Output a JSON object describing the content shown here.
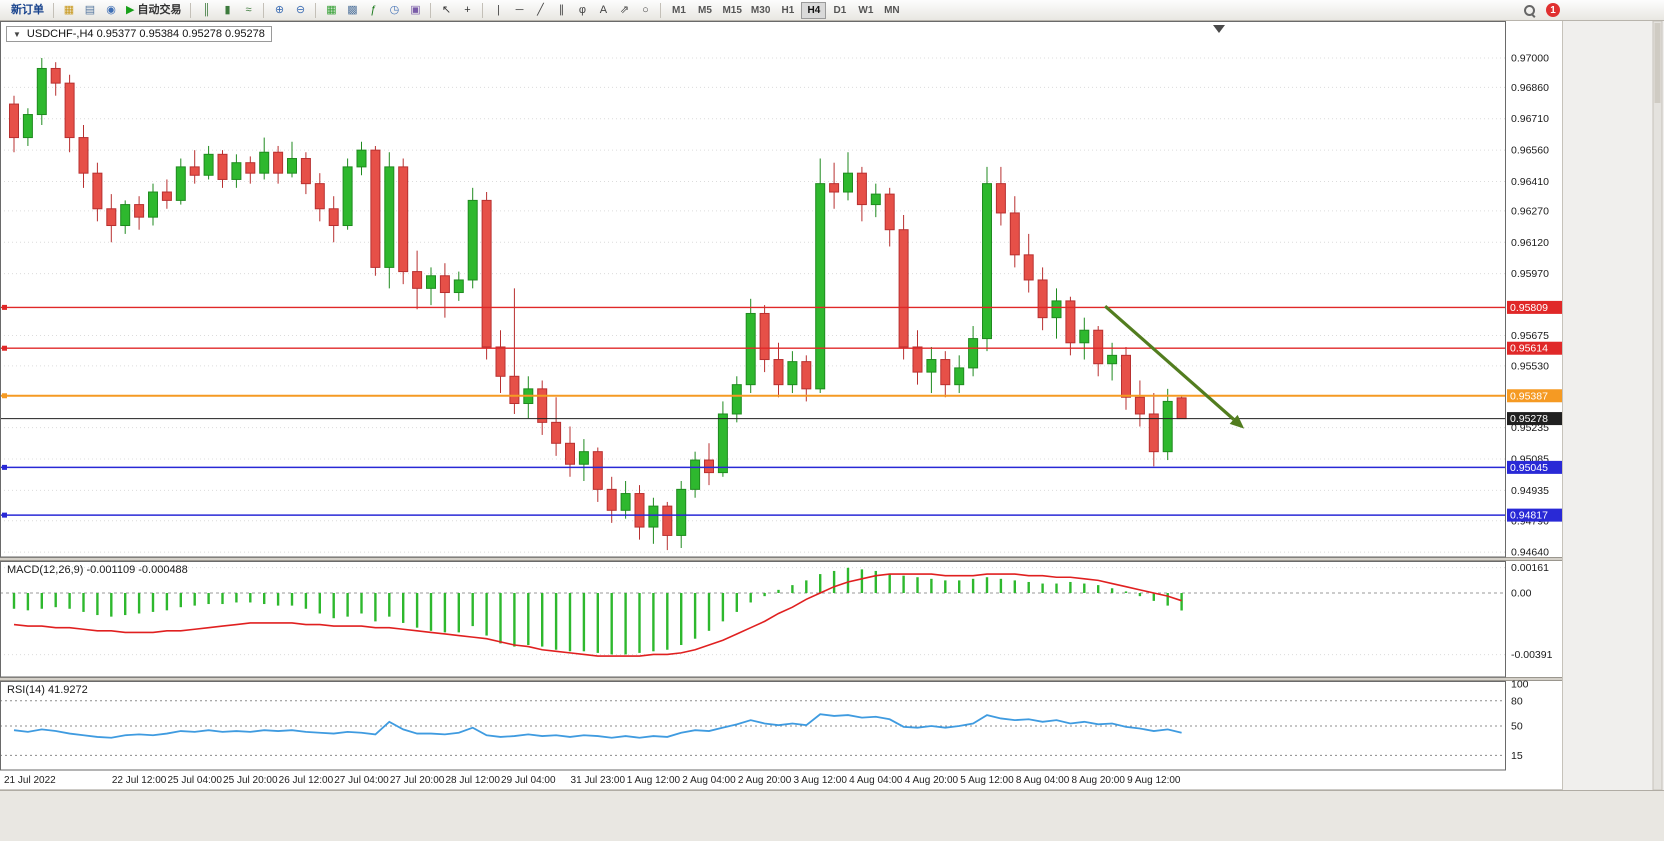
{
  "toolbar": {
    "notification_count": "1",
    "timeframes": [
      "M1",
      "M5",
      "M15",
      "M30",
      "H1",
      "H4",
      "D1",
      "W1",
      "MN"
    ],
    "active_timeframe": "H4",
    "items": [
      {
        "name": "new-order-button",
        "label": "新订单",
        "label_color": "#16418c"
      },
      {
        "sep": true
      },
      {
        "name": "charts-icon",
        "glyph": "▦",
        "color": "#c79618"
      },
      {
        "name": "data-window-icon",
        "glyph": "▤",
        "color": "#54769e"
      },
      {
        "name": "navigator-icon",
        "glyph": "◉",
        "color": "#3f6fb5"
      },
      {
        "name": "autotrading-button",
        "label": "自动交易",
        "label_color": "#333333",
        "glyph": "▶",
        "color": "#18a018"
      },
      {
        "sep": true
      },
      {
        "name": "bar-chart-icon",
        "glyph": "║",
        "color": "#3c7a3c"
      },
      {
        "name": "candlestick-chart-icon",
        "glyph": "▮",
        "color": "#3c7a3c"
      },
      {
        "name": "line-chart-icon",
        "glyph": "≈",
        "color": "#3c7a3c"
      },
      {
        "sep": true
      },
      {
        "name": "zoom-in-icon",
        "glyph": "⊕",
        "color": "#3f6fb5"
      },
      {
        "name": "zoom-out-icon",
        "glyph": "⊖",
        "color": "#3f6fb5"
      },
      {
        "sep": true
      },
      {
        "name": "tile-windows-icon",
        "glyph": "▦",
        "color": "#2f9e2f"
      },
      {
        "name": "cascade-windows-icon",
        "glyph": "▩",
        "color": "#54769e"
      },
      {
        "name": "indicators-icon",
        "glyph": "ƒ",
        "color": "#1d7a1d"
      },
      {
        "name": "period-icon",
        "glyph": "◷",
        "color": "#3f6fb5"
      },
      {
        "name": "templates-icon",
        "glyph": "▣",
        "color": "#7a5ca8"
      },
      {
        "sep": true
      },
      {
        "name": "cursor-icon",
        "glyph": "↖",
        "color": "#333333"
      },
      {
        "name": "crosshair-icon",
        "glyph": "+",
        "color": "#333333"
      },
      {
        "sep": true
      },
      {
        "name": "vertical-line-icon",
        "glyph": "|",
        "color": "#444444"
      },
      {
        "name": "horizontal-line-icon",
        "glyph": "─",
        "color": "#444444"
      },
      {
        "name": "trendline-icon",
        "glyph": "╱",
        "color": "#444444"
      },
      {
        "name": "channel-icon",
        "glyph": "∥",
        "color": "#444444"
      },
      {
        "name": "fibonacci-icon",
        "glyph": "φ",
        "color": "#444444"
      },
      {
        "name": "text-icon",
        "glyph": "A",
        "color": "#444444"
      },
      {
        "name": "arrows-icon",
        "glyph": "⇗",
        "color": "#444444"
      },
      {
        "name": "shapes-icon",
        "glyph": "○",
        "color": "#444444"
      },
      {
        "sep": true
      }
    ]
  },
  "chart": {
    "expand_icon": "▼",
    "quote_line": "USDCHF-,H4  0.95377 0.95384 0.95278 0.95278",
    "macd_label": "MACD(12,26,9) -0.001109 -0.000488",
    "rsi_label": "RSI(14) 41.9272"
  },
  "chart_data": [
    {
      "type": "candlestick",
      "symbol": "USDCHF-",
      "timeframe": "H4",
      "price_unit": "pips_1e-4",
      "last_quote": {
        "open": 0.95377,
        "high": 0.95384,
        "low": 0.95278,
        "close": 0.95278
      },
      "y_axis_ticks": [
        "0.97000",
        "0.96860",
        "0.96710",
        "0.96560",
        "0.96410",
        "0.96270",
        "0.96120",
        "0.95970",
        "0.95675",
        "0.95530",
        "0.95235",
        "0.95085",
        "0.94935",
        "0.94790",
        "0.94640"
      ],
      "levels": [
        {
          "price": 0.95809,
          "label": "0.95809",
          "color": "#e02828",
          "type": "resistance"
        },
        {
          "price": 0.95614,
          "label": "0.95614",
          "color": "#e02828",
          "type": "resistance"
        },
        {
          "price": 0.95387,
          "label": "0.95387",
          "color": "#f59a23",
          "type": "pivot"
        },
        {
          "price": 0.95278,
          "label": "0.95278",
          "color": "#202020",
          "type": "bid"
        },
        {
          "price": 0.95045,
          "label": "0.95045",
          "color": "#2929d6",
          "type": "support"
        },
        {
          "price": 0.94817,
          "label": "0.94817",
          "color": "#2929d6",
          "type": "support"
        }
      ],
      "annotations": [
        {
          "type": "trend-arrow",
          "color": "#527d1f",
          "from": {
            "bar": 78.5,
            "price": 0.95815
          },
          "to": {
            "bar": 88.5,
            "price": 0.9523
          }
        }
      ],
      "x_axis_labels": [
        {
          "label": "21 Jul 2022",
          "bar": 0
        },
        {
          "label": "22 Jul 12:00",
          "bar": 9
        },
        {
          "label": "25 Jul 04:00",
          "bar": 13
        },
        {
          "label": "25 Jul 20:00",
          "bar": 17
        },
        {
          "label": "26 Jul 12:00",
          "bar": 21
        },
        {
          "label": "27 Jul 04:00",
          "bar": 25
        },
        {
          "label": "27 Jul 20:00",
          "bar": 29
        },
        {
          "label": "28 Jul 12:00",
          "bar": 33
        },
        {
          "label": "29 Jul 04:00",
          "bar": 37
        },
        {
          "label": "31 Jul 23:00",
          "bar": 42
        },
        {
          "label": "1 Aug 12:00",
          "bar": 46
        },
        {
          "label": "2 Aug 04:00",
          "bar": 50
        },
        {
          "label": "2 Aug 20:00",
          "bar": 54
        },
        {
          "label": "3 Aug 12:00",
          "bar": 58
        },
        {
          "label": "4 Aug 04:00",
          "bar": 62
        },
        {
          "label": "4 Aug 20:00",
          "bar": 66
        },
        {
          "label": "5 Aug 12:00",
          "bar": 70
        },
        {
          "label": "8 Aug 04:00",
          "bar": 74
        },
        {
          "label": "8 Aug 20:00",
          "bar": 78
        },
        {
          "label": "9 Aug 12:00",
          "bar": 82
        }
      ],
      "candles_ohlc": [
        [
          9678,
          9682,
          9655,
          9662
        ],
        [
          9662,
          9676,
          9658,
          9673
        ],
        [
          9673,
          9700,
          9668,
          9695
        ],
        [
          9695,
          9698,
          9682,
          9688
        ],
        [
          9688,
          9692,
          9655,
          9662
        ],
        [
          9662,
          9668,
          9638,
          9645
        ],
        [
          9645,
          9650,
          9622,
          9628
        ],
        [
          9628,
          9635,
          9612,
          9620
        ],
        [
          9620,
          9632,
          9616,
          9630
        ],
        [
          9630,
          9634,
          9618,
          9624
        ],
        [
          9624,
          9640,
          9620,
          9636
        ],
        [
          9636,
          9642,
          9628,
          9632
        ],
        [
          9632,
          9652,
          9630,
          9648
        ],
        [
          9648,
          9656,
          9640,
          9644
        ],
        [
          9644,
          9658,
          9642,
          9654
        ],
        [
          9654,
          9656,
          9638,
          9642
        ],
        [
          9642,
          9654,
          9638,
          9650
        ],
        [
          9650,
          9653,
          9640,
          9645
        ],
        [
          9645,
          9662,
          9642,
          9655
        ],
        [
          9655,
          9658,
          9640,
          9645
        ],
        [
          9645,
          9660,
          9643,
          9652
        ],
        [
          9652,
          9655,
          9635,
          9640
        ],
        [
          9640,
          9645,
          9622,
          9628
        ],
        [
          9628,
          9634,
          9612,
          9620
        ],
        [
          9620,
          9652,
          9618,
          9648
        ],
        [
          9648,
          9660,
          9644,
          9656
        ],
        [
          9656,
          9658,
          9596,
          9600
        ],
        [
          9600,
          9655,
          9590,
          9648
        ],
        [
          9648,
          9652,
          9592,
          9598
        ],
        [
          9598,
          9608,
          9580,
          9590
        ],
        [
          9590,
          9600,
          9582,
          9596
        ],
        [
          9596,
          9602,
          9576,
          9588
        ],
        [
          9588,
          9598,
          9584,
          9594
        ],
        [
          9594,
          9638,
          9590,
          9632
        ],
        [
          9632,
          9636,
          9556,
          9562
        ],
        [
          9562,
          9570,
          9540,
          9548
        ],
        [
          9548,
          9590,
          9530,
          9535
        ],
        [
          9535,
          9548,
          9528,
          9542
        ],
        [
          9542,
          9546,
          9520,
          9526
        ],
        [
          9526,
          9538,
          9510,
          9516
        ],
        [
          9516,
          9524,
          9500,
          9506
        ],
        [
          9506,
          9518,
          9498,
          9512
        ],
        [
          9512,
          9514,
          9488,
          9494
        ],
        [
          9494,
          9500,
          9478,
          9484
        ],
        [
          9484,
          9498,
          9480,
          9492
        ],
        [
          9492,
          9496,
          9470,
          9476
        ],
        [
          9476,
          9490,
          9468,
          9486
        ],
        [
          9486,
          9488,
          9465,
          9472
        ],
        [
          9472,
          9498,
          9466,
          9494
        ],
        [
          9494,
          9512,
          9490,
          9508
        ],
        [
          9508,
          9516,
          9496,
          9502
        ],
        [
          9502,
          9536,
          9500,
          9530
        ],
        [
          9530,
          9548,
          9526,
          9544
        ],
        [
          9544,
          9585,
          9540,
          9578
        ],
        [
          9578,
          9582,
          9550,
          9556
        ],
        [
          9556,
          9564,
          9538,
          9544
        ],
        [
          9544,
          9560,
          9540,
          9555
        ],
        [
          9555,
          9558,
          9536,
          9542
        ],
        [
          9542,
          9652,
          9540,
          9640
        ],
        [
          9640,
          9650,
          9628,
          9636
        ],
        [
          9636,
          9655,
          9632,
          9645
        ],
        [
          9645,
          9648,
          9622,
          9630
        ],
        [
          9630,
          9640,
          9624,
          9635
        ],
        [
          9635,
          9638,
          9610,
          9618
        ],
        [
          9618,
          9625,
          9556,
          9562
        ],
        [
          9562,
          9570,
          9544,
          9550
        ],
        [
          9550,
          9562,
          9540,
          9556
        ],
        [
          9556,
          9560,
          9538,
          9544
        ],
        [
          9544,
          9558,
          9540,
          9552
        ],
        [
          9552,
          9572,
          9548,
          9566
        ],
        [
          9566,
          9648,
          9560,
          9640
        ],
        [
          9640,
          9648,
          9620,
          9626
        ],
        [
          9626,
          9634,
          9600,
          9606
        ],
        [
          9606,
          9616,
          9588,
          9594
        ],
        [
          9594,
          9600,
          9570,
          9576
        ],
        [
          9576,
          9590,
          9566,
          9584
        ],
        [
          9584,
          9586,
          9558,
          9564
        ],
        [
          9564,
          9576,
          9556,
          9570
        ],
        [
          9570,
          9572,
          9548,
          9554
        ],
        [
          9554,
          9564,
          9546,
          9558
        ],
        [
          9558,
          9562,
          9532,
          9538
        ],
        [
          9538,
          9546,
          9524,
          9530
        ],
        [
          9530,
          9540,
          9505,
          9512
        ],
        [
          9512,
          9542,
          9508,
          9536
        ],
        [
          9537.7,
          9538.4,
          9527.8,
          9527.8
        ]
      ]
    },
    {
      "type": "bar",
      "name": "MACD(12,26,9)",
      "current_values": [
        -0.001109,
        -0.000488
      ],
      "value_unit": "1e-4",
      "y_axis_ticks": [
        "0.00161",
        "0.00",
        "-0.00391"
      ],
      "colors": {
        "histogram": "#2eb82e",
        "signal": "#e02020"
      },
      "histogram": [
        -10,
        -11,
        -10,
        -9,
        -10,
        -12,
        -14,
        -15,
        -14,
        -13,
        -12,
        -11,
        -9,
        -8,
        -7,
        -7,
        -6,
        -6,
        -7,
        -8,
        -8,
        -10,
        -13,
        -16,
        -15,
        -13,
        -18,
        -15,
        -19,
        -22,
        -24,
        -25,
        -25,
        -21,
        -27,
        -32,
        -34,
        -33,
        -34,
        -36,
        -37,
        -37,
        -38,
        -39,
        -39,
        -38,
        -37,
        -36,
        -33,
        -29,
        -24,
        -18,
        -12,
        -6,
        -2,
        2,
        5,
        8,
        12,
        14,
        16,
        15,
        14,
        12,
        11,
        10,
        9,
        8,
        8,
        9,
        10,
        9,
        8,
        7,
        6,
        6,
        7,
        6,
        5,
        3,
        1,
        -2,
        -5,
        -8,
        -11.09
      ],
      "signal": [
        -20,
        -21,
        -21,
        -22,
        -22,
        -23,
        -24,
        -24,
        -25,
        -25,
        -25,
        -24,
        -24,
        -23,
        -22,
        -21,
        -20,
        -19,
        -19,
        -19,
        -19,
        -20,
        -20,
        -21,
        -21,
        -21,
        -22,
        -22,
        -23,
        -24,
        -25,
        -26,
        -27,
        -28,
        -29,
        -31,
        -33,
        -34,
        -36,
        -37,
        -38,
        -39,
        -40,
        -40,
        -40,
        -40,
        -39,
        -39,
        -38,
        -36,
        -33,
        -30,
        -26,
        -22,
        -18,
        -13,
        -9,
        -4,
        0,
        4,
        7,
        9,
        11,
        12,
        12,
        12,
        12,
        11,
        11,
        11,
        12,
        12,
        12,
        11,
        11,
        10,
        10,
        9,
        8,
        6,
        4,
        2,
        0,
        -2,
        -4.88
      ]
    },
    {
      "type": "line",
      "name": "RSI(14)",
      "current_value": 41.9272,
      "y_axis_ticks": [
        "100",
        "80",
        "50",
        "15"
      ],
      "color": "#3f9be0",
      "values": [
        45,
        43,
        46,
        44,
        41,
        39,
        37,
        36,
        39,
        40,
        39,
        41,
        44,
        43,
        45,
        43,
        44,
        43,
        45,
        44,
        45,
        43,
        42,
        41,
        43,
        42,
        40,
        55,
        46,
        41,
        41,
        40,
        42,
        48,
        39,
        37,
        38,
        40,
        38,
        39,
        37,
        39,
        38,
        36,
        38,
        36,
        38,
        37,
        42,
        45,
        44,
        48,
        52,
        57,
        53,
        51,
        53,
        51,
        64,
        62,
        63,
        60,
        61,
        58,
        49,
        48,
        50,
        48,
        50,
        53,
        63,
        59,
        57,
        58,
        55,
        57,
        53,
        55,
        52,
        53,
        49,
        47,
        44,
        46,
        41.93
      ]
    }
  ]
}
